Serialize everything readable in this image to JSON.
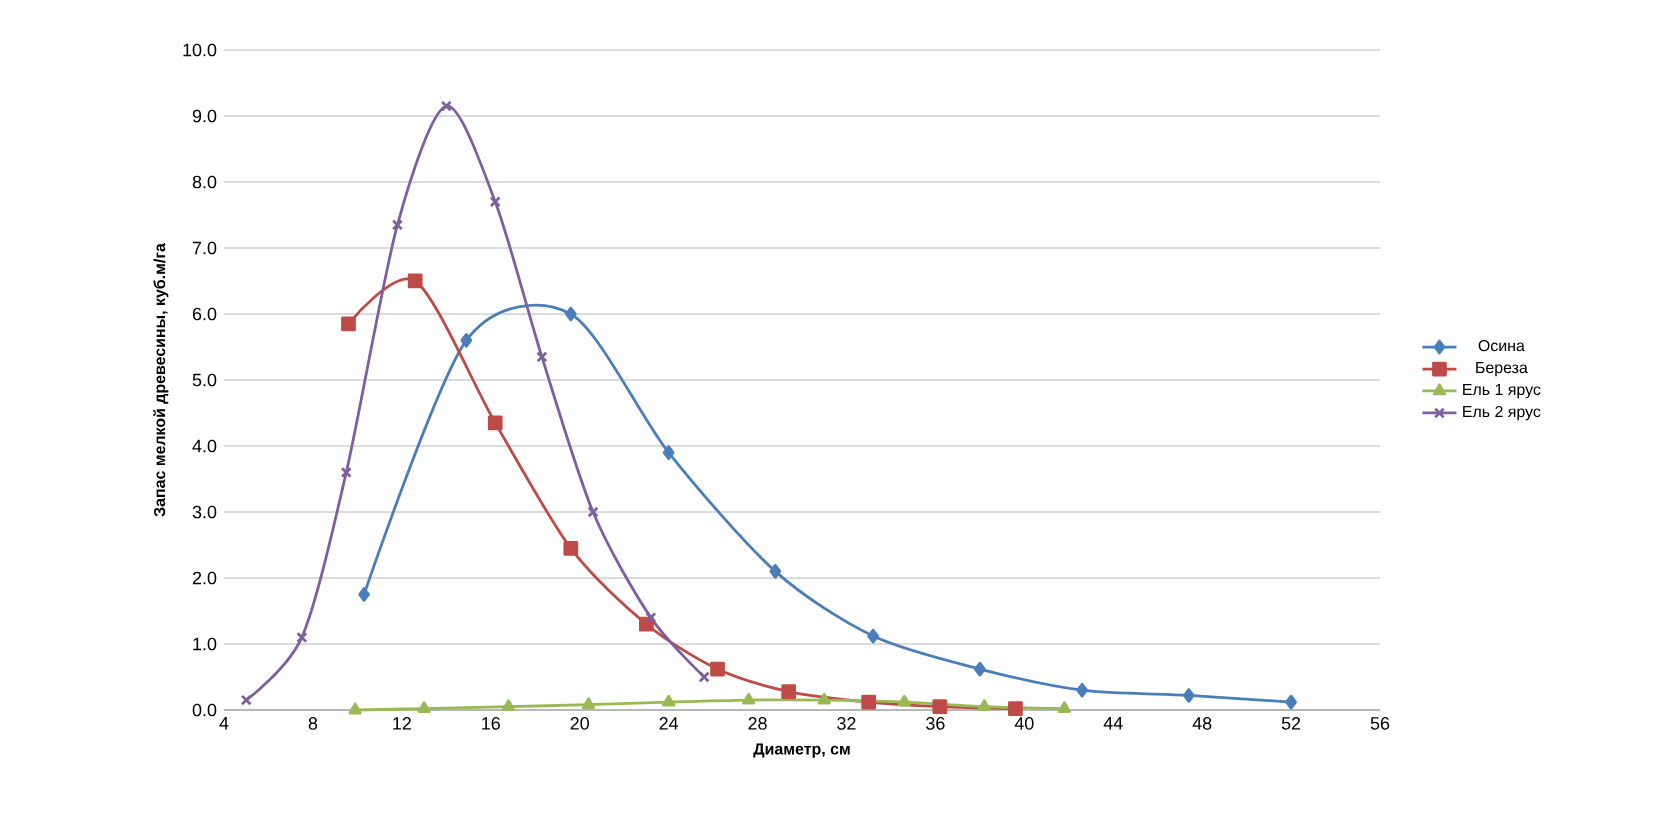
{
  "chart_data": {
    "type": "line",
    "xlabel": "Диаметр, см",
    "ylabel": "Запас мелкой древесины, куб.м/га",
    "xlim": [
      4,
      56
    ],
    "xticks": [
      4,
      8,
      12,
      16,
      20,
      24,
      28,
      32,
      36,
      40,
      44,
      48,
      52,
      56
    ],
    "ylim": [
      0,
      10
    ],
    "yticks": [
      {
        "value": 0,
        "label": "0.0"
      },
      {
        "value": 1,
        "label": "1.0"
      },
      {
        "value": 2,
        "label": "2.0"
      },
      {
        "value": 3,
        "label": "3.0"
      },
      {
        "value": 4,
        "label": "4.0"
      },
      {
        "value": 5,
        "label": "5.0"
      },
      {
        "value": 6,
        "label": "6.0"
      },
      {
        "value": 7,
        "label": "7.0"
      },
      {
        "value": 8,
        "label": "8.0"
      },
      {
        "value": 9,
        "label": "9.0"
      },
      {
        "value": 10,
        "label": "10.0"
      }
    ],
    "grid": "y",
    "legend": "right",
    "line_style": "solid",
    "series": [
      {
        "name": "Осина",
        "color": "#4a7ebb",
        "marker": "diamond",
        "x": [
          10.3,
          14.9,
          19.6,
          24,
          28.8,
          33.2,
          38,
          42.6,
          47.4,
          52
        ],
        "values": [
          1.75,
          5.6,
          6.0,
          3.9,
          2.1,
          1.12,
          0.62,
          0.3,
          0.22,
          0.12
        ]
      },
      {
        "name": "Береза",
        "color": "#be4b48",
        "marker": "square",
        "x": [
          9.6,
          12.6,
          16.2,
          19.6,
          23.0,
          26.2,
          29.4,
          33.0,
          36.2,
          39.6
        ],
        "values": [
          5.85,
          6.5,
          4.35,
          2.45,
          1.3,
          0.62,
          0.28,
          0.12,
          0.05,
          0.02
        ]
      },
      {
        "name": "Ель 1 ярус",
        "color": "#98b954",
        "marker": "triangle",
        "x": [
          9.9,
          13.0,
          16.8,
          20.4,
          24,
          27.6,
          31,
          34.6,
          38.2,
          41.8
        ],
        "values": [
          0.0,
          0.02,
          0.05,
          0.08,
          0.12,
          0.15,
          0.15,
          0.12,
          0.05,
          0.02
        ]
      },
      {
        "name": "Ель 2 ярус",
        "color": "#7d5fa0",
        "marker": "cross",
        "x": [
          5,
          7.5,
          9.5,
          11.8,
          14,
          16.2,
          18.3,
          20.6,
          23.2,
          25.6
        ],
        "values": [
          0.15,
          1.1,
          3.6,
          7.35,
          9.15,
          7.7,
          5.35,
          3.0,
          1.4,
          0.5
        ]
      }
    ]
  }
}
